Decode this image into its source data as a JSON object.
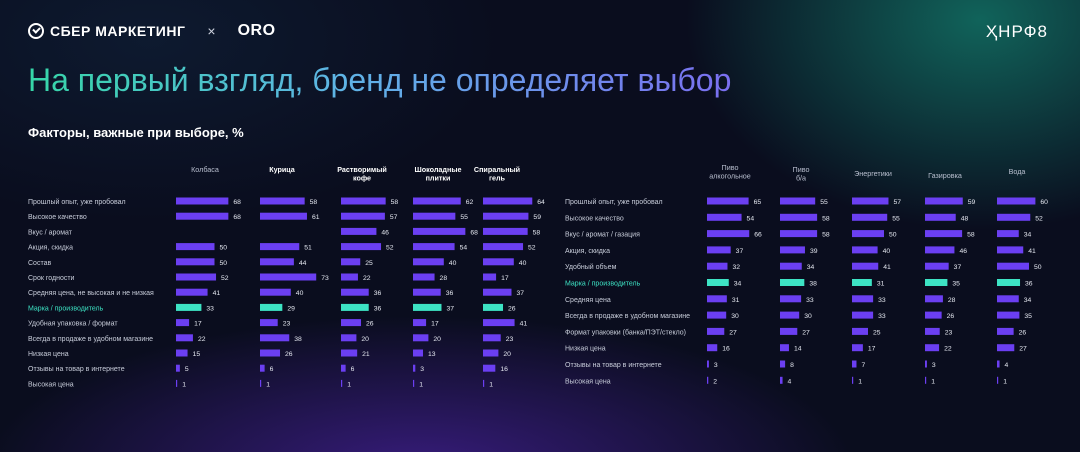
{
  "header": {
    "sber_label": "СБЕР МАРКЕТИНГ",
    "times": "×",
    "oro_label": "ORO",
    "nrf_label": "ҲНРФ8"
  },
  "title": "На первый взгляд, бренд не определяет выбор",
  "subtitle": "Факторы, важные при выборе, %",
  "colors": {
    "bar": "#6b3ff2",
    "highlight": "#3de3c4",
    "highlight_label": "#3de3c4"
  },
  "chart_data": [
    {
      "type": "bar",
      "orientation": "horizontal",
      "categories": [
        "Прошлый опыт, уже пробовал",
        "Высокое качество",
        "Вкус / аромат",
        "Акция, скидка",
        "Состав",
        "Срок годности",
        "Средняя цена, не высокая и не низкая",
        "Марка / производитель",
        "Удобная упаковка / формат",
        "Всегда в продаже в удобном магазине",
        "Низкая цена",
        "Отзывы на товар в интернете",
        "Высокая цена"
      ],
      "highlight_category": "Марка / производитель",
      "series": [
        {
          "name": "Колбаса",
          "values": [
            68,
            68,
            null,
            50,
            50,
            52,
            41,
            33,
            17,
            22,
            15,
            5,
            1
          ]
        },
        {
          "name": "Курица",
          "values": [
            58,
            61,
            null,
            51,
            44,
            73,
            40,
            29,
            23,
            38,
            26,
            6,
            1
          ]
        },
        {
          "name": "Растворимый кофе",
          "values": [
            58,
            57,
            46,
            52,
            25,
            22,
            36,
            36,
            26,
            20,
            21,
            6,
            1
          ]
        },
        {
          "name": "Шоколадные плитки",
          "values": [
            62,
            55,
            68,
            54,
            40,
            28,
            36,
            37,
            17,
            20,
            13,
            3,
            1
          ]
        },
        {
          "name": "Спиральный гель",
          "values": [
            64,
            59,
            58,
            52,
            40,
            17,
            37,
            26,
            41,
            23,
            20,
            16,
            1
          ]
        }
      ]
    },
    {
      "type": "bar",
      "orientation": "horizontal",
      "categories": [
        "Прошлый опыт, уже пробовал",
        "Высокое качество",
        "Вкус / аромат / газация",
        "Акция, скидка",
        "Удобный объем",
        "Марка / производитель",
        "Средняя цена",
        "Всегда в продаже в удобном магазине",
        "Формат упаковки (банка/ПЭТ/стекло)",
        "Низкая цена",
        "Отзывы на товар в интернете",
        "Высокая цена"
      ],
      "highlight_category": "Марка / производитель",
      "series": [
        {
          "name": "Пиво алкогольное",
          "values": [
            65,
            54,
            66,
            37,
            32,
            34,
            31,
            30,
            27,
            16,
            3,
            2
          ]
        },
        {
          "name": "Пиво б/а",
          "values": [
            55,
            58,
            58,
            39,
            34,
            38,
            33,
            30,
            27,
            14,
            8,
            4
          ]
        },
        {
          "name": "Энергетики",
          "values": [
            57,
            55,
            50,
            40,
            41,
            31,
            33,
            33,
            25,
            17,
            7,
            1
          ]
        },
        {
          "name": "Газировка",
          "values": [
            59,
            48,
            58,
            46,
            37,
            35,
            28,
            26,
            23,
            22,
            3,
            1
          ]
        },
        {
          "name": "Вода",
          "values": [
            60,
            52,
            34,
            41,
            50,
            36,
            34,
            35,
            26,
            27,
            4,
            1
          ]
        }
      ]
    }
  ]
}
